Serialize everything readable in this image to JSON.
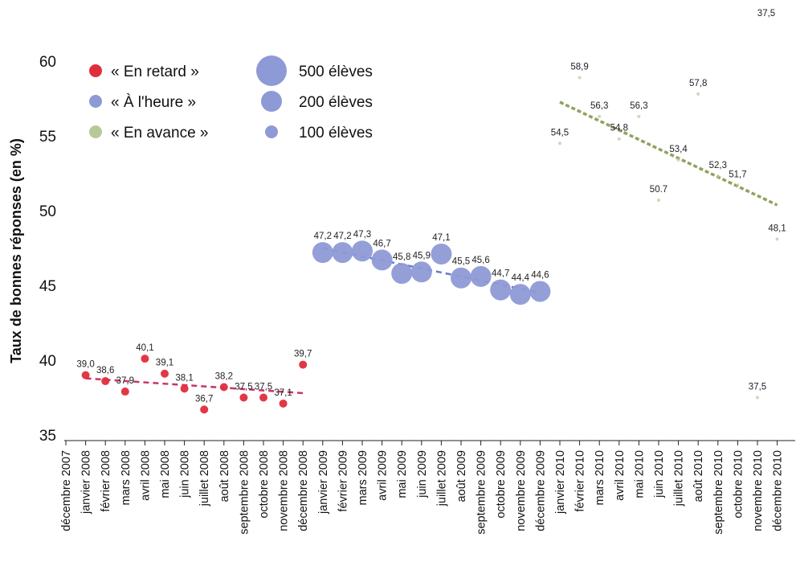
{
  "chart_data": {
    "type": "scatter",
    "title": "",
    "xlabel": "",
    "ylabel": "Taux de bonnes réponses (en %)",
    "ylim": [
      35,
      60
    ],
    "yticks": [
      35,
      40,
      45,
      50,
      55,
      60
    ],
    "grid": false,
    "legend": "top-left",
    "categories": [
      "décembre 2007",
      "janvier 2008",
      "février 2008",
      "mars 2008",
      "avril 2008",
      "mai 2008",
      "juin 2008",
      "juillet 2008",
      "août 2008",
      "septembre 2008",
      "octobre 2008",
      "novembre 2008",
      "décembre 2008",
      "janvier 2009",
      "février 2009",
      "mars 2009",
      "avril 2009",
      "mai 2009",
      "juin 2009",
      "juillet 2009",
      "août 2009",
      "septembre 2009",
      "octobre 2009",
      "novembre 2009",
      "décembre 2009",
      "janvier 2010",
      "février 2010",
      "mars 2010",
      "avril 2010",
      "mai 2010",
      "juin 2010",
      "juillet 2010",
      "août 2010",
      "septembre 2010",
      "octobre 2010",
      "novembre 2010",
      "décembre 2010"
    ],
    "series": [
      {
        "name": "« En retard »",
        "color": "#e02d3c",
        "trend_color": "#c8336e",
        "points": [
          {
            "x": "janvier 2008",
            "y": 39.0,
            "label": "39,0"
          },
          {
            "x": "février 2008",
            "y": 38.6,
            "label": "38,6"
          },
          {
            "x": "mars 2008",
            "y": 37.9,
            "label": "37,9"
          },
          {
            "x": "avril 2008",
            "y": 40.1,
            "label": "40,1"
          },
          {
            "x": "mai 2008",
            "y": 39.1,
            "label": "39,1"
          },
          {
            "x": "juin 2008",
            "y": 38.1,
            "label": "38,1"
          },
          {
            "x": "juillet 2008",
            "y": 36.7,
            "label": "36,7"
          },
          {
            "x": "août 2008",
            "y": 38.2,
            "label": "38,2"
          },
          {
            "x": "septembre 2008",
            "y": 37.5,
            "label": "37,5"
          },
          {
            "x": "octobre 2008",
            "y": 37.5,
            "label": "37,5"
          },
          {
            "x": "novembre 2008",
            "y": 37.1,
            "label": "37,1"
          },
          {
            "x": "décembre 2008",
            "y": 39.7,
            "label": "39,7"
          }
        ]
      },
      {
        "name": "« À l'heure »",
        "color": "#8e9ad6",
        "trend_color": "#6a78cc",
        "points": [
          {
            "x": "janvier 2009",
            "y": 47.2,
            "label": "47,2"
          },
          {
            "x": "février 2009",
            "y": 47.2,
            "label": "47,2"
          },
          {
            "x": "mars 2009",
            "y": 47.3,
            "label": "47,3"
          },
          {
            "x": "avril 2009",
            "y": 46.7,
            "label": "46,7"
          },
          {
            "x": "mai 2009",
            "y": 45.8,
            "label": "45,8"
          },
          {
            "x": "juin 2009",
            "y": 45.9,
            "label": "45,9"
          },
          {
            "x": "juillet 2009",
            "y": 47.1,
            "label": "47,1"
          },
          {
            "x": "août 2009",
            "y": 45.5,
            "label": "45,5"
          },
          {
            "x": "septembre 2009",
            "y": 45.6,
            "label": "45,6"
          },
          {
            "x": "octobre 2009",
            "y": 44.7,
            "label": "44,7"
          },
          {
            "x": "novembre 2009",
            "y": 44.4,
            "label": "44,4"
          },
          {
            "x": "décembre 2009",
            "y": 44.6,
            "label": "44,6"
          }
        ]
      },
      {
        "name": "« En avance »",
        "color": "#b9c89a",
        "trend_color": "#8fa35e",
        "points": [
          {
            "x": "janvier 2010",
            "y": 54.5,
            "label": "54,5"
          },
          {
            "x": "février 2010",
            "y": 58.9,
            "label": "58,9"
          },
          {
            "x": "mars 2010",
            "y": 56.3,
            "label": "56,3"
          },
          {
            "x": "avril 2010",
            "y": 54.8,
            "label": "54,8"
          },
          {
            "x": "mai 2010",
            "y": 56.3,
            "label": "56,3"
          },
          {
            "x": "juin 2010",
            "y": 50.7,
            "label": "50.7"
          },
          {
            "x": "juillet 2010",
            "y": 53.4,
            "label": "53,4"
          },
          {
            "x": "août 2010",
            "y": 57.8,
            "label": "57,8"
          },
          {
            "x": "septembre 2010",
            "y": 52.3,
            "label": "52,3"
          },
          {
            "x": "octobre 2010",
            "y": 51.7,
            "label": "51,7"
          },
          {
            "x": "novembre 2010",
            "y": 37.5,
            "label": "37,5"
          },
          {
            "x": "décembre 2010",
            "y": 48.1,
            "label": "48,1"
          }
        ]
      }
    ],
    "size_legend": [
      {
        "label": "500 élèves",
        "value": 500
      },
      {
        "label": "200 élèves",
        "value": 200
      },
      {
        "label": "100 élèves",
        "value": 100
      }
    ],
    "annotations": [
      {
        "text": "37,5",
        "position": "top-right"
      }
    ]
  }
}
